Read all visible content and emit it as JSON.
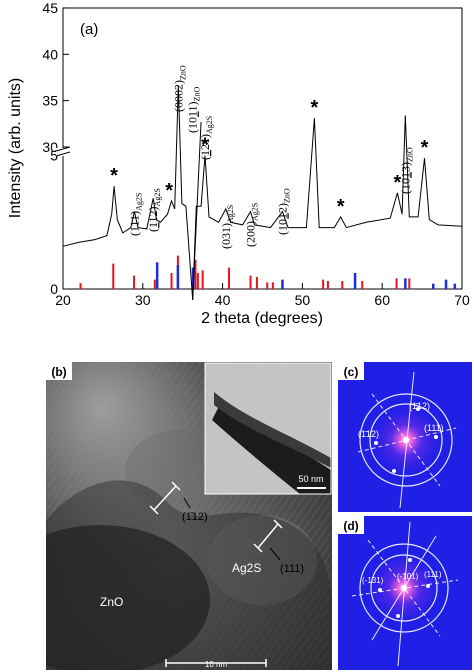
{
  "chart_data": {
    "type": "line",
    "panel_label": "(a)",
    "xlabel": "2 theta (degrees)",
    "ylabel": "Intensity (arb. units)",
    "xlim": [
      20,
      70
    ],
    "x_ticks": [
      "20",
      "30",
      "40",
      "50",
      "60",
      "70"
    ],
    "y_ticks_lower": [
      "0",
      "5"
    ],
    "y_ticks_upper": [
      "30",
      "35",
      "40",
      "45"
    ],
    "grid": false,
    "pattern": [
      [
        20,
        1.6
      ],
      [
        22,
        1.75
      ],
      [
        24,
        1.85
      ],
      [
        25.5,
        2.0
      ],
      [
        26.1,
        2.8
      ],
      [
        26.4,
        3.85
      ],
      [
        26.8,
        2.6
      ],
      [
        27.5,
        2.1
      ],
      [
        28.5,
        2.3
      ],
      [
        28.95,
        2.9
      ],
      [
        29.4,
        2.3
      ],
      [
        30.5,
        2.25
      ],
      [
        31.3,
        3.4
      ],
      [
        31.7,
        2.6
      ],
      [
        32.2,
        2.5
      ],
      [
        33.1,
        2.8
      ],
      [
        33.6,
        3.3
      ],
      [
        34.0,
        3.0
      ],
      [
        34.45,
        36.6
      ],
      [
        34.9,
        3.2
      ],
      [
        35.4,
        3.1
      ],
      [
        36.25,
        13.5
      ],
      [
        36.7,
        3.1
      ],
      [
        37.3,
        3.1
      ],
      [
        37.8,
        5.0
      ],
      [
        38.3,
        2.7
      ],
      [
        39.5,
        2.5
      ],
      [
        40.4,
        3.0
      ],
      [
        41.0,
        2.5
      ],
      [
        42.5,
        2.4
      ],
      [
        43.5,
        2.9
      ],
      [
        44.0,
        2.4
      ],
      [
        46,
        2.3
      ],
      [
        47.5,
        2.9
      ],
      [
        48.2,
        2.3
      ],
      [
        50.5,
        2.3
      ],
      [
        51.5,
        6.4
      ],
      [
        52.1,
        2.3
      ],
      [
        54,
        2.3
      ],
      [
        54.8,
        2.7
      ],
      [
        55.5,
        2.3
      ],
      [
        58,
        2.5
      ],
      [
        61,
        2.65
      ],
      [
        61.9,
        3.6
      ],
      [
        62.5,
        2.8
      ],
      [
        62.9,
        6.5
      ],
      [
        63.4,
        2.7
      ],
      [
        64.5,
        2.7
      ],
      [
        65.3,
        4.9
      ],
      [
        65.9,
        2.6
      ],
      [
        67,
        2.4
      ],
      [
        70,
        2.35
      ]
    ],
    "reference_lines": {
      "red": [
        22.2,
        26.3,
        28.9,
        31.5,
        33.6,
        34.4,
        36.6,
        36.9,
        37.5,
        40.8,
        43.5,
        44.3,
        45.6,
        46.3,
        52.6,
        53.2,
        55.0,
        57.5,
        61.8,
        63.4
      ],
      "blue": [
        31.8,
        34.4,
        36.3,
        47.5,
        56.6,
        62.9,
        66.4,
        68.0,
        69.1
      ]
    },
    "peak_labels": [
      {
        "text": "(0002)",
        "sub": "ZnO",
        "x": 34.45
      },
      {
        "text": "(10",
        "over": "1",
        "text2": "1)",
        "sub": "ZnO",
        "x": 36.25
      },
      {
        "text": "(",
        "over": "1",
        "text2": "21)",
        "sub": "Ag2S",
        "x": 37.8
      },
      {
        "text": "(111)",
        "sub": "Ag2S",
        "x": 28.95
      },
      {
        "text": "(",
        "over": "1",
        "text2": "12)",
        "sub": "Ag2S",
        "x": 31.3
      },
      {
        "text": "(031)",
        "sub": "Ag2S",
        "x": 40.4
      },
      {
        "text": "(200)",
        "sub": "Ag2S",
        "x": 43.5
      },
      {
        "text": "(10",
        "over": "1",
        "text2": "2)",
        "sub": "ZnO",
        "x": 47.5
      },
      {
        "text": "(10",
        "over": "1",
        "text2": "3)",
        "sub": "ZnO",
        "x": 62.9
      }
    ],
    "star_marker": "*",
    "star_x": [
      26.4,
      33.3,
      37.8,
      51.5,
      54.8,
      61.9,
      65.3
    ]
  },
  "panel_b": {
    "label": "(b)",
    "plane_1": "(1̄12)",
    "plane_2": "(111)",
    "phase_ag2s": "Ag2S",
    "phase_zno": "ZnO",
    "inset_scalebar": "50 nm",
    "scalebar": "10 nm"
  },
  "panel_c": {
    "label": "(c)",
    "spot_1": "(1̄12)",
    "spot_2": "(1̄12)",
    "spot_3": "(111)"
  },
  "panel_d": {
    "label": "(d)",
    "spot_1": "(-131)",
    "spot_2": "(-101)",
    "spot_3": "(111)"
  },
  "colors": {
    "red_reference": "#e8141b",
    "blue_reference": "#1c2fd6",
    "fft_background": "#1f1fe6"
  }
}
